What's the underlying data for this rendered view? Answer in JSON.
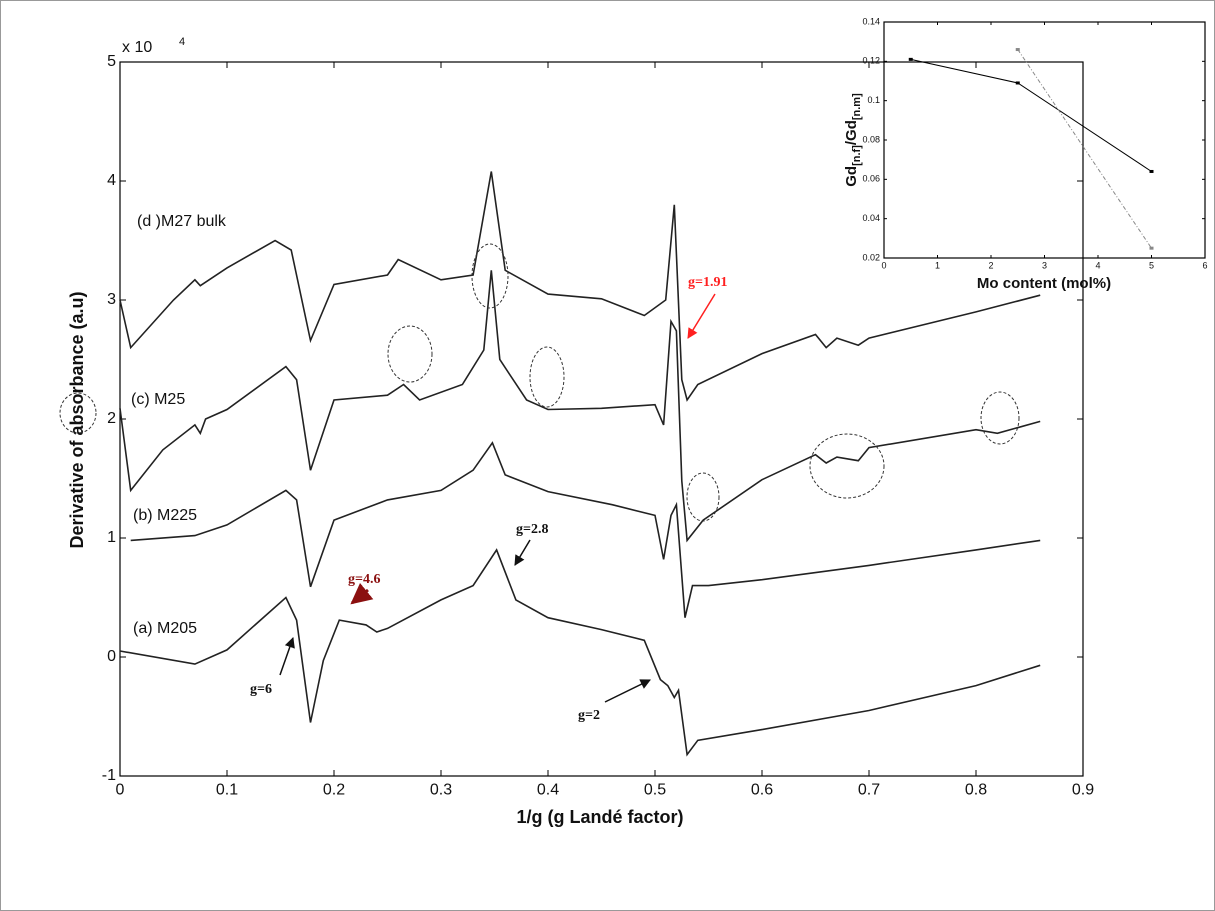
{
  "chart_data": [
    {
      "type": "line",
      "xlabel": "1/g (g Landé factor)",
      "ylabel": "Derivative of absorbance (a.u)",
      "multiplier": {
        "base": "x 10",
        "exp": "4"
      },
      "xlim": [
        0,
        0.9
      ],
      "xticks": [
        0,
        0.1,
        0.2,
        0.3,
        0.4,
        0.5,
        0.6,
        0.7,
        0.8,
        0.9
      ],
      "ylim": [
        -1,
        5
      ],
      "yticks": [
        -1,
        0,
        1,
        2,
        3,
        4,
        5
      ],
      "series": [
        {
          "name": "(d )M27 bulk",
          "color": "#222222",
          "x": [
            0.0,
            0.01,
            0.05,
            0.07,
            0.075,
            0.1,
            0.145,
            0.16,
            0.178,
            0.2,
            0.25,
            0.26,
            0.3,
            0.33,
            0.347,
            0.36,
            0.4,
            0.45,
            0.49,
            0.51,
            0.518,
            0.525,
            0.53,
            0.54,
            0.6,
            0.65,
            0.66,
            0.67,
            0.69,
            0.7,
            0.8,
            0.86
          ],
          "values": [
            3.0,
            2.6,
            3.0,
            3.17,
            3.12,
            3.27,
            3.5,
            3.42,
            2.66,
            3.13,
            3.21,
            3.34,
            3.17,
            3.21,
            4.08,
            3.25,
            3.05,
            3.01,
            2.87,
            3.0,
            3.8,
            2.33,
            2.16,
            2.29,
            2.55,
            2.71,
            2.6,
            2.68,
            2.62,
            2.68,
            2.9,
            3.04
          ]
        },
        {
          "name": "(c) M25",
          "color": "#222222",
          "x": [
            0.0,
            0.01,
            0.04,
            0.07,
            0.075,
            0.08,
            0.1,
            0.155,
            0.165,
            0.178,
            0.2,
            0.25,
            0.265,
            0.28,
            0.32,
            0.34,
            0.347,
            0.355,
            0.38,
            0.4,
            0.45,
            0.5,
            0.508,
            0.515,
            0.52,
            0.525,
            0.53,
            0.545,
            0.6,
            0.65,
            0.66,
            0.67,
            0.69,
            0.7,
            0.8,
            0.82,
            0.86
          ],
          "values": [
            2.09,
            1.4,
            1.74,
            1.95,
            1.88,
            2.0,
            2.08,
            2.44,
            2.33,
            1.57,
            2.16,
            2.2,
            2.29,
            2.16,
            2.29,
            2.58,
            3.25,
            2.5,
            2.16,
            2.08,
            2.09,
            2.12,
            1.95,
            2.82,
            2.74,
            1.48,
            0.98,
            1.15,
            1.49,
            1.7,
            1.63,
            1.68,
            1.65,
            1.76,
            1.91,
            1.88,
            1.98
          ]
        },
        {
          "name": "(b) M225",
          "color": "#222222",
          "x": [
            0.01,
            0.07,
            0.1,
            0.155,
            0.165,
            0.178,
            0.2,
            0.25,
            0.3,
            0.33,
            0.348,
            0.36,
            0.4,
            0.46,
            0.5,
            0.508,
            0.515,
            0.52,
            0.528,
            0.535,
            0.55,
            0.6,
            0.7,
            0.8,
            0.86
          ],
          "values": [
            0.98,
            1.02,
            1.11,
            1.4,
            1.32,
            0.59,
            1.15,
            1.32,
            1.4,
            1.57,
            1.8,
            1.53,
            1.39,
            1.28,
            1.19,
            0.82,
            1.19,
            1.28,
            0.33,
            0.6,
            0.6,
            0.65,
            0.77,
            0.9,
            0.98
          ]
        },
        {
          "name": "(a) M205",
          "color": "#222222",
          "x": [
            0.0,
            0.07,
            0.1,
            0.155,
            0.165,
            0.178,
            0.19,
            0.205,
            0.23,
            0.24,
            0.25,
            0.3,
            0.33,
            0.352,
            0.37,
            0.4,
            0.45,
            0.49,
            0.505,
            0.512,
            0.518,
            0.522,
            0.53,
            0.54,
            0.6,
            0.7,
            0.8,
            0.86
          ],
          "values": [
            0.05,
            -0.06,
            0.06,
            0.5,
            0.31,
            -0.55,
            -0.03,
            0.31,
            0.27,
            0.21,
            0.24,
            0.48,
            0.6,
            0.9,
            0.48,
            0.33,
            0.23,
            0.14,
            -0.19,
            -0.24,
            -0.34,
            -0.28,
            -0.82,
            -0.7,
            -0.61,
            -0.45,
            -0.24,
            -0.07
          ]
        }
      ],
      "annotations": [
        {
          "text": "g=1.91",
          "color": "#ff2020"
        },
        {
          "text": "g=4.6",
          "color": "#8b1010"
        },
        {
          "text": "g=2.8",
          "color": "#111111"
        },
        {
          "text": "g=6",
          "color": "#111111"
        },
        {
          "text": "g=2",
          "color": "#111111"
        }
      ]
    },
    {
      "type": "line",
      "xlabel": "Mo content (mol%)",
      "ylabel": [
        "Gd",
        "[n.f]",
        "/Gd",
        "[n.m]"
      ],
      "xlim": [
        0,
        6
      ],
      "xticks": [
        0,
        1,
        2,
        3,
        4,
        5,
        6
      ],
      "ylim": [
        0.02,
        0.14
      ],
      "yticks": [
        0.02,
        0.04,
        0.06,
        0.08,
        0.1,
        0.12,
        0.14
      ],
      "series": [
        {
          "color": "#000000",
          "dash": false,
          "x": [
            0.5,
            2.5,
            5
          ],
          "values": [
            0.121,
            0.109,
            0.064
          ]
        },
        {
          "color": "#888888",
          "dash": true,
          "x": [
            2.5,
            5
          ],
          "values": [
            0.126,
            0.025
          ]
        }
      ]
    }
  ]
}
